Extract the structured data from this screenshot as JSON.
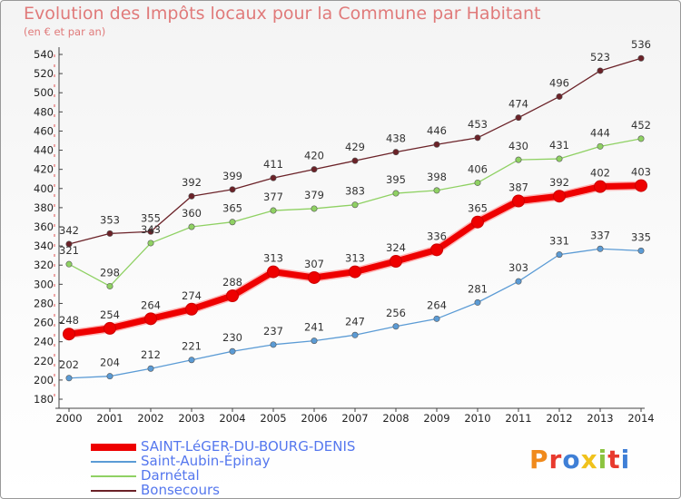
{
  "header": {
    "title": "Evolution des Impôts locaux pour la Commune par Habitant",
    "subtitle": "(en € et par an)"
  },
  "logo": {
    "text": "Proxiti",
    "colors": [
      "#f08a1c",
      "#e83a2e",
      "#3f7fd6",
      "#f0c21c",
      "#8bc43f",
      "#e83a2e",
      "#3f7fd6"
    ]
  },
  "chart_data": {
    "type": "line",
    "title": "Evolution des Impôts locaux pour la Commune par Habitant",
    "subtitle": "(en € et par an)",
    "x": [
      2000,
      2001,
      2002,
      2003,
      2004,
      2005,
      2006,
      2007,
      2008,
      2009,
      2010,
      2011,
      2012,
      2013,
      2014
    ],
    "ylim": [
      180,
      540
    ],
    "yticks": [
      180,
      200,
      220,
      240,
      260,
      280,
      300,
      320,
      340,
      360,
      380,
      400,
      420,
      440,
      460,
      480,
      500,
      520,
      540
    ],
    "grid": false,
    "legend": "bottom-left",
    "series": [
      {
        "name": "SAINT-LéGER-DU-BOURG-DENIS",
        "color": "#ee0000",
        "values": [
          248,
          254,
          264,
          274,
          288,
          313,
          307,
          313,
          324,
          336,
          365,
          387,
          392,
          402,
          403
        ]
      },
      {
        "name": "Saint-Aubin-Épinay",
        "color": "#5b9bd5",
        "values": [
          202,
          204,
          212,
          221,
          230,
          237,
          241,
          247,
          256,
          264,
          281,
          303,
          331,
          337,
          335
        ]
      },
      {
        "name": "Darnétal",
        "color": "#8fd163",
        "values": [
          321,
          298,
          343,
          360,
          365,
          377,
          379,
          383,
          395,
          398,
          406,
          430,
          431,
          444,
          452
        ]
      },
      {
        "name": "Bonsecours",
        "color": "#6b2228",
        "values": [
          342,
          353,
          355,
          392,
          399,
          411,
          420,
          429,
          438,
          446,
          453,
          474,
          496,
          523,
          536
        ]
      }
    ]
  }
}
